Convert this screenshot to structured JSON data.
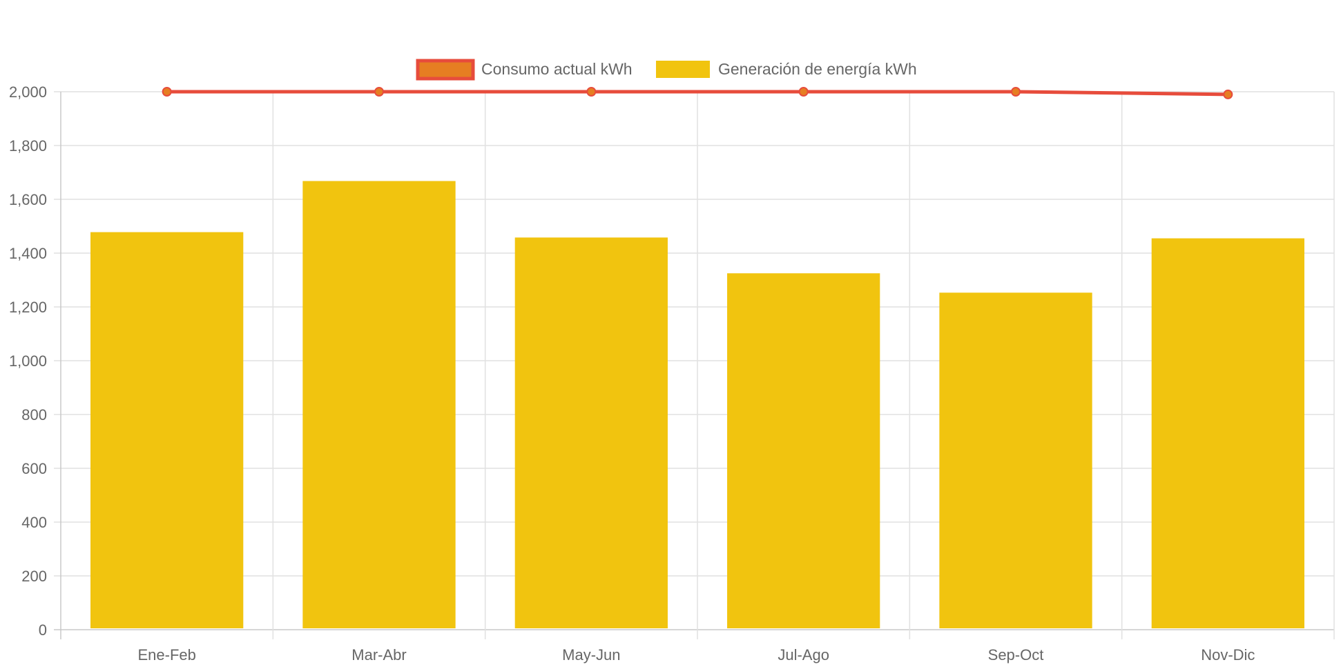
{
  "chart_data": {
    "type": "bar",
    "categories": [
      "Ene-Feb",
      "Mar-Abr",
      "May-Jun",
      "Jul-Ago",
      "Sep-Oct",
      "Nov-Dic"
    ],
    "series": [
      {
        "name": "Consumo actual kWh",
        "type": "line",
        "values": [
          2000,
          2000,
          2000,
          2000,
          2000,
          1990
        ],
        "color": "#e74c3c",
        "point_color": "#e67e22"
      },
      {
        "name": "Generación de energía kWh",
        "type": "bar",
        "values": [
          1478,
          1668,
          1458,
          1325,
          1253,
          1455
        ],
        "color": "#f1c40f"
      }
    ],
    "ylim": [
      0,
      2000
    ],
    "yticks": [
      0,
      200,
      400,
      600,
      800,
      1000,
      1200,
      1400,
      1600,
      1800,
      2000
    ],
    "ytick_labels": [
      "0",
      "200",
      "400",
      "600",
      "800",
      "1,000",
      "1,200",
      "1,400",
      "1,600",
      "1,800",
      "2,000"
    ],
    "grid": true,
    "legend": "top-center",
    "title": "",
    "xlabel": "",
    "ylabel": ""
  }
}
